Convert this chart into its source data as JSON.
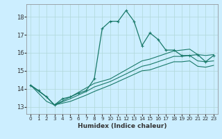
{
  "xlabel": "Humidex (Indice chaleur)",
  "bg_color": "#cceeff",
  "line_color": "#1a7a6a",
  "grid_color": "#b0d8d8",
  "xlim": [
    -0.5,
    23.5
  ],
  "ylim": [
    12.6,
    18.7
  ],
  "yticks": [
    13,
    14,
    15,
    16,
    17,
    18
  ],
  "xticks": [
    0,
    1,
    2,
    3,
    4,
    5,
    6,
    7,
    8,
    9,
    10,
    11,
    12,
    13,
    14,
    15,
    16,
    17,
    18,
    19,
    20,
    21,
    22,
    23
  ],
  "series1_x": [
    0,
    1,
    2,
    3,
    4,
    5,
    6,
    7,
    8,
    9,
    10,
    11,
    12,
    13,
    14,
    15,
    16,
    17,
    18,
    19,
    20,
    21,
    22,
    23
  ],
  "series1_y": [
    14.2,
    13.9,
    13.55,
    13.1,
    13.45,
    13.55,
    13.75,
    13.9,
    14.55,
    17.35,
    17.75,
    17.75,
    18.35,
    17.75,
    16.4,
    17.1,
    16.75,
    16.15,
    16.15,
    15.85,
    15.85,
    15.9,
    15.5,
    15.85
  ],
  "series2_x": [
    0,
    2,
    3,
    5,
    7,
    8,
    10,
    14,
    15,
    18,
    19,
    20,
    21,
    22,
    23
  ],
  "series2_y": [
    14.2,
    13.55,
    13.1,
    13.55,
    14.05,
    14.3,
    14.55,
    15.55,
    15.65,
    16.1,
    16.15,
    16.2,
    15.9,
    15.85,
    15.9
  ],
  "series3_x": [
    0,
    2,
    3,
    5,
    7,
    8,
    10,
    14,
    15,
    18,
    19,
    20,
    21,
    22,
    23
  ],
  "series3_y": [
    14.2,
    13.55,
    13.1,
    13.45,
    13.85,
    14.1,
    14.4,
    15.25,
    15.35,
    15.8,
    15.8,
    15.85,
    15.55,
    15.5,
    15.55
  ],
  "series4_x": [
    0,
    2,
    3,
    5,
    7,
    8,
    10,
    14,
    15,
    18,
    19,
    20,
    21,
    22,
    23
  ],
  "series4_y": [
    14.2,
    13.3,
    13.1,
    13.3,
    13.65,
    13.85,
    14.2,
    15.0,
    15.05,
    15.5,
    15.5,
    15.55,
    15.25,
    15.2,
    15.3
  ]
}
